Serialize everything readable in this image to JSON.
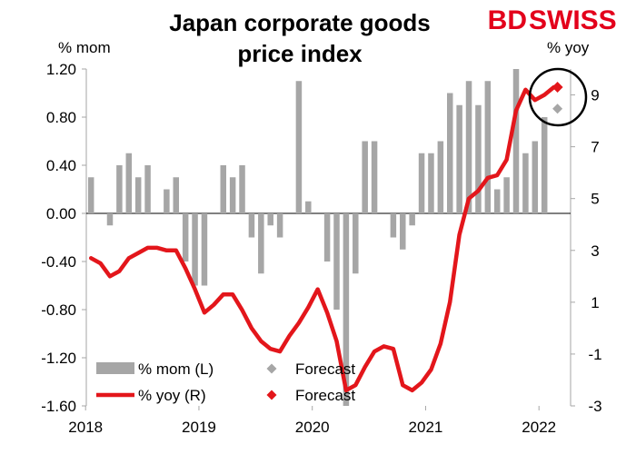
{
  "brand": {
    "logo_left": "BD",
    "logo_right": "SWISS",
    "logo_color": "#e3001b"
  },
  "chart_data": {
    "type": "bar",
    "title": "Japan corporate goods price index",
    "title_lines": [
      "Japan corporate goods",
      "price index"
    ],
    "left_axis": {
      "unit": "% mom",
      "ylim": [
        -1.6,
        1.2
      ],
      "ticks": [
        1.2,
        0.8,
        0.4,
        0.0,
        -0.4,
        -0.8,
        -1.2,
        -1.6
      ],
      "tick_labels": [
        "1.20",
        "0.80",
        "0.40",
        "0.00",
        "-0.40",
        "-0.80",
        "-1.20",
        "-1.60"
      ]
    },
    "right_axis": {
      "unit": "% yoy",
      "ylim": [
        -3,
        10
      ],
      "ticks": [
        9,
        7,
        5,
        3,
        1,
        -1,
        -3
      ],
      "tick_labels": [
        "9",
        "7",
        "5",
        "3",
        "1",
        "-1",
        "-3"
      ]
    },
    "x_axis": {
      "ticks": [
        "2018",
        "2019",
        "2020",
        "2021",
        "2022"
      ]
    },
    "legend": {
      "position": "bottom-left",
      "items": [
        {
          "label": "% mom (L)",
          "kind": "bar",
          "color": "#a6a6a6"
        },
        {
          "label": "Forecast",
          "kind": "diamond",
          "color": "#a6a6a6"
        },
        {
          "label": "% yoy (R)",
          "kind": "line",
          "color": "#e3161b"
        },
        {
          "label": "Forecast",
          "kind": "diamond",
          "color": "#e3161b"
        }
      ]
    },
    "series": [
      {
        "name": "% mom (L)",
        "type": "bar",
        "axis": "left",
        "color": "#a6a6a6",
        "x": [
          "2018-01",
          "2018-02",
          "2018-03",
          "2018-04",
          "2018-05",
          "2018-06",
          "2018-07",
          "2018-08",
          "2018-09",
          "2018-10",
          "2018-11",
          "2018-12",
          "2019-01",
          "2019-02",
          "2019-03",
          "2019-04",
          "2019-05",
          "2019-06",
          "2019-07",
          "2019-08",
          "2019-09",
          "2019-10",
          "2019-11",
          "2019-12",
          "2020-01",
          "2020-02",
          "2020-03",
          "2020-04",
          "2020-05",
          "2020-06",
          "2020-07",
          "2020-08",
          "2020-09",
          "2020-10",
          "2020-11",
          "2020-12",
          "2021-01",
          "2021-02",
          "2021-03",
          "2021-04",
          "2021-05",
          "2021-06",
          "2021-07",
          "2021-08",
          "2021-09",
          "2021-10",
          "2021-11",
          "2021-12",
          "2022-01",
          "2022-02"
        ],
        "values": [
          0.3,
          0.0,
          -0.1,
          0.4,
          0.5,
          0.3,
          0.4,
          0.0,
          0.2,
          0.3,
          -0.4,
          -0.6,
          -0.6,
          0.0,
          0.4,
          0.3,
          0.4,
          -0.2,
          -0.5,
          -0.1,
          -0.2,
          0.0,
          1.1,
          0.1,
          0.0,
          -0.4,
          -0.8,
          -1.6,
          -0.5,
          0.6,
          0.6,
          0.0,
          -0.2,
          -0.3,
          -0.1,
          0.5,
          0.5,
          0.6,
          1.0,
          0.9,
          1.1,
          0.9,
          1.1,
          0.2,
          0.3,
          1.2,
          0.5,
          0.6,
          0.8,
          0.0
        ]
      },
      {
        "name": "% yoy (R)",
        "type": "line",
        "axis": "right",
        "color": "#e3161b",
        "x": [
          "2018-01",
          "2018-02",
          "2018-03",
          "2018-04",
          "2018-05",
          "2018-06",
          "2018-07",
          "2018-08",
          "2018-09",
          "2018-10",
          "2018-11",
          "2018-12",
          "2019-01",
          "2019-02",
          "2019-03",
          "2019-04",
          "2019-05",
          "2019-06",
          "2019-07",
          "2019-08",
          "2019-09",
          "2019-10",
          "2019-11",
          "2019-12",
          "2020-01",
          "2020-02",
          "2020-03",
          "2020-04",
          "2020-05",
          "2020-06",
          "2020-07",
          "2020-08",
          "2020-09",
          "2020-10",
          "2020-11",
          "2020-12",
          "2021-01",
          "2021-02",
          "2021-03",
          "2021-04",
          "2021-05",
          "2021-06",
          "2021-07",
          "2021-08",
          "2021-09",
          "2021-10",
          "2021-11",
          "2021-12",
          "2022-01",
          "2022-02"
        ],
        "values": [
          2.7,
          2.5,
          2.0,
          2.2,
          2.7,
          2.9,
          3.1,
          3.1,
          3.0,
          3.0,
          2.3,
          1.5,
          0.6,
          0.9,
          1.3,
          1.3,
          0.7,
          0.0,
          -0.5,
          -0.8,
          -0.9,
          -0.3,
          0.2,
          0.8,
          1.5,
          0.6,
          -0.5,
          -2.4,
          -2.2,
          -1.5,
          -0.9,
          -0.7,
          -0.8,
          -2.2,
          -2.4,
          -2.1,
          -1.6,
          -0.6,
          1.0,
          3.6,
          5.0,
          5.3,
          5.8,
          5.9,
          6.5,
          8.4,
          9.2,
          8.8,
          9.0,
          9.3
        ]
      },
      {
        "name": "Forecast",
        "type": "diamond",
        "axis": "left",
        "color": "#a6a6a6",
        "x": [
          "2022-02"
        ],
        "values": [
          0.87
        ]
      },
      {
        "name": "Forecast",
        "type": "diamond",
        "axis": "right",
        "color": "#e3161b",
        "x": [
          "2022-02"
        ],
        "values": [
          9.3
        ]
      }
    ],
    "annotation": {
      "type": "circle",
      "around": "forecast points",
      "color": "#000000"
    }
  }
}
